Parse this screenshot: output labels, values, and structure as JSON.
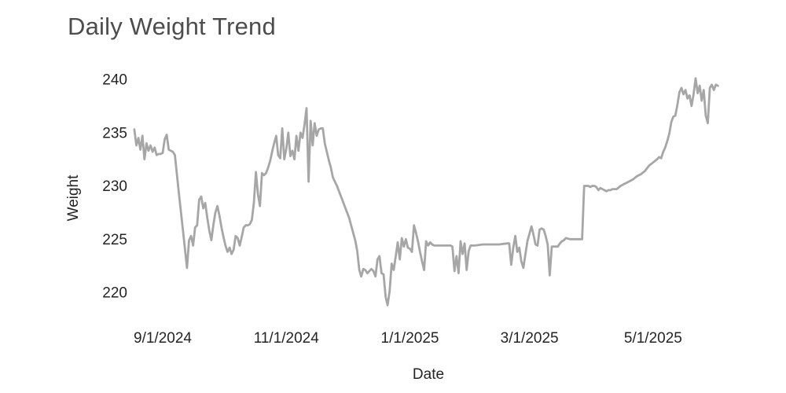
{
  "chart_data": {
    "type": "line",
    "title": "Daily Weight Trend",
    "xlabel": "Date",
    "ylabel": "Weight",
    "x_unit": "days since first observation",
    "grid": false,
    "legend": false,
    "xlim": [
      0,
      288
    ],
    "ylim": [
      217.5,
      241.5
    ],
    "y_ticks": [
      240,
      235,
      230,
      225,
      220
    ],
    "x_ticks": [
      {
        "x": 14,
        "label": "9/1/2024"
      },
      {
        "x": 75,
        "label": "11/1/2024"
      },
      {
        "x": 136,
        "label": "1/1/2025"
      },
      {
        "x": 195,
        "label": "3/1/2025"
      },
      {
        "x": 256,
        "label": "5/1/2025"
      }
    ],
    "colors": {
      "line": "#a6a6a6",
      "title_text": "#4d4d4d",
      "axis_text": "#242424"
    },
    "line_width": 2.8,
    "series": [
      {
        "name": "Weight",
        "points": [
          [
            0,
            235.3
          ],
          [
            1,
            233.8
          ],
          [
            2,
            234.5
          ],
          [
            3,
            233.4
          ],
          [
            4,
            234.7
          ],
          [
            5,
            232.5
          ],
          [
            6,
            234.0
          ],
          [
            7,
            233.3
          ],
          [
            8,
            233.8
          ],
          [
            9,
            233.2
          ],
          [
            10,
            233.6
          ],
          [
            11,
            232.9
          ],
          [
            12,
            233.0
          ],
          [
            13,
            233.0
          ],
          [
            14,
            233.1
          ],
          [
            15,
            234.4
          ],
          [
            16,
            234.8
          ],
          [
            17,
            233.4
          ],
          [
            18,
            233.3
          ],
          [
            19,
            233.2
          ],
          [
            20,
            232.9
          ],
          [
            22,
            229.3
          ],
          [
            24,
            225.8
          ],
          [
            26,
            222.3
          ],
          [
            27,
            224.9
          ],
          [
            28,
            225.3
          ],
          [
            29,
            224.4
          ],
          [
            30,
            226.1
          ],
          [
            31,
            226.3
          ],
          [
            32,
            228.7
          ],
          [
            33,
            229.0
          ],
          [
            34,
            227.9
          ],
          [
            35,
            228.4
          ],
          [
            36,
            227.0
          ],
          [
            37,
            225.8
          ],
          [
            38,
            224.9
          ],
          [
            39,
            226.3
          ],
          [
            40,
            227.5
          ],
          [
            41,
            228.1
          ],
          [
            42,
            227.2
          ],
          [
            43,
            226.1
          ],
          [
            44,
            225.2
          ],
          [
            45,
            224.4
          ],
          [
            46,
            223.8
          ],
          [
            47,
            224.2
          ],
          [
            48,
            223.6
          ],
          [
            49,
            224.0
          ],
          [
            50,
            225.3
          ],
          [
            51,
            225.1
          ],
          [
            52,
            224.4
          ],
          [
            53,
            225.2
          ],
          [
            54,
            226.1
          ],
          [
            55,
            226.3
          ],
          [
            56,
            226.3
          ],
          [
            57,
            226.4
          ],
          [
            58,
            226.8
          ],
          [
            59,
            228.4
          ],
          [
            60,
            231.3
          ],
          [
            61,
            229.2
          ],
          [
            62,
            228.1
          ],
          [
            63,
            231.2
          ],
          [
            64,
            231.0
          ],
          [
            65,
            231.2
          ],
          [
            66,
            231.7
          ],
          [
            67,
            232.3
          ],
          [
            68,
            233.2
          ],
          [
            69,
            234.0
          ],
          [
            70,
            234.7
          ],
          [
            71,
            232.9
          ],
          [
            72,
            232.6
          ],
          [
            73,
            235.4
          ],
          [
            74,
            232.5
          ],
          [
            75,
            233.5
          ],
          [
            76,
            235.0
          ],
          [
            77,
            232.8
          ],
          [
            78,
            233.3
          ],
          [
            79,
            232.5
          ],
          [
            80,
            234.7
          ],
          [
            81,
            233.3
          ],
          [
            82,
            235.0
          ],
          [
            83,
            234.5
          ],
          [
            84,
            235.8
          ],
          [
            85,
            237.3
          ],
          [
            86,
            230.4
          ],
          [
            87,
            236.1
          ],
          [
            88,
            233.8
          ],
          [
            89,
            235.9
          ],
          [
            90,
            234.7
          ],
          [
            91,
            235.3
          ],
          [
            92,
            235.4
          ],
          [
            93,
            235.4
          ],
          [
            94,
            234.0
          ],
          [
            95,
            233.2
          ],
          [
            96,
            232.4
          ],
          [
            97,
            231.7
          ],
          [
            98,
            230.8
          ],
          [
            100,
            230.0
          ],
          [
            102,
            229.0
          ],
          [
            104,
            228.0
          ],
          [
            106,
            227.0
          ],
          [
            107,
            226.3
          ],
          [
            108,
            225.6
          ],
          [
            109,
            224.9
          ],
          [
            110,
            223.9
          ],
          [
            111,
            222.1
          ],
          [
            112,
            221.5
          ],
          [
            113,
            222.2
          ],
          [
            114,
            222.1
          ],
          [
            115,
            221.8
          ],
          [
            116,
            222.0
          ],
          [
            117,
            222.2
          ],
          [
            118,
            222.0
          ],
          [
            119,
            221.5
          ],
          [
            120,
            223.1
          ],
          [
            121,
            223.4
          ],
          [
            122,
            221.8
          ],
          [
            123,
            221.7
          ],
          [
            124,
            219.6
          ],
          [
            125,
            218.8
          ],
          [
            126,
            220.1
          ],
          [
            127,
            222.7
          ],
          [
            128,
            222.1
          ],
          [
            129,
            223.4
          ],
          [
            130,
            224.7
          ],
          [
            131,
            223.1
          ],
          [
            132,
            225.1
          ],
          [
            133,
            224.3
          ],
          [
            134,
            225.0
          ],
          [
            135,
            224.2
          ],
          [
            136,
            224.1
          ],
          [
            137,
            223.8
          ],
          [
            138,
            226.3
          ],
          [
            139,
            225.6
          ],
          [
            140,
            224.8
          ],
          [
            141,
            223.8
          ],
          [
            142,
            222.9
          ],
          [
            143,
            222.1
          ],
          [
            144,
            224.8
          ],
          [
            145,
            224.4
          ],
          [
            146,
            224.7
          ],
          [
            147,
            224.5
          ],
          [
            148,
            224.4
          ],
          [
            150,
            224.4
          ],
          [
            152,
            224.4
          ],
          [
            154,
            224.4
          ],
          [
            156,
            224.4
          ],
          [
            157,
            224.3
          ],
          [
            158,
            222.0
          ],
          [
            159,
            223.4
          ],
          [
            160,
            221.8
          ],
          [
            161,
            224.8
          ],
          [
            162,
            223.6
          ],
          [
            163,
            224.6
          ],
          [
            164,
            222.1
          ],
          [
            165,
            223.9
          ],
          [
            166,
            224.4
          ],
          [
            168,
            224.4
          ],
          [
            172,
            224.5
          ],
          [
            176,
            224.5
          ],
          [
            180,
            224.5
          ],
          [
            184,
            224.6
          ],
          [
            185,
            224.6
          ],
          [
            186,
            222.6
          ],
          [
            187,
            224.2
          ],
          [
            188,
            225.3
          ],
          [
            189,
            223.8
          ],
          [
            190,
            224.2
          ],
          [
            191,
            222.9
          ],
          [
            192,
            222.3
          ],
          [
            193,
            223.6
          ],
          [
            194,
            224.8
          ],
          [
            195,
            225.5
          ],
          [
            196,
            226.2
          ],
          [
            197,
            225.4
          ],
          [
            198,
            224.5
          ],
          [
            199,
            224.4
          ],
          [
            200,
            225.9
          ],
          [
            201,
            226.0
          ],
          [
            202,
            225.9
          ],
          [
            203,
            225.3
          ],
          [
            204,
            224.5
          ],
          [
            205,
            221.6
          ],
          [
            206,
            224.3
          ],
          [
            207,
            224.3
          ],
          [
            208,
            224.3
          ],
          [
            209,
            224.3
          ],
          [
            210,
            224.6
          ],
          [
            211,
            224.8
          ],
          [
            212,
            224.9
          ],
          [
            213,
            225.1
          ],
          [
            215,
            225.0
          ],
          [
            217,
            225.0
          ],
          [
            219,
            225.0
          ],
          [
            221,
            225.0
          ],
          [
            222,
            230.0
          ],
          [
            223,
            230.0
          ],
          [
            224,
            230.0
          ],
          [
            225,
            229.9
          ],
          [
            226,
            230.0
          ],
          [
            227,
            230.0
          ],
          [
            228,
            229.9
          ],
          [
            229,
            229.6
          ],
          [
            230,
            229.8
          ],
          [
            231,
            229.7
          ],
          [
            232,
            229.6
          ],
          [
            233,
            229.5
          ],
          [
            234,
            229.6
          ],
          [
            235,
            229.6
          ],
          [
            236,
            229.7
          ],
          [
            238,
            229.7
          ],
          [
            240,
            230.0
          ],
          [
            242,
            230.2
          ],
          [
            244,
            230.4
          ],
          [
            246,
            230.6
          ],
          [
            248,
            230.9
          ],
          [
            250,
            231.1
          ],
          [
            252,
            231.4
          ],
          [
            254,
            231.9
          ],
          [
            256,
            232.2
          ],
          [
            258,
            232.5
          ],
          [
            259,
            232.7
          ],
          [
            260,
            232.6
          ],
          [
            261,
            233.2
          ],
          [
            262,
            233.6
          ],
          [
            263,
            234.2
          ],
          [
            264,
            234.9
          ],
          [
            265,
            236.0
          ],
          [
            266,
            236.5
          ],
          [
            267,
            236.6
          ],
          [
            268,
            237.6
          ],
          [
            269,
            238.8
          ],
          [
            270,
            239.2
          ],
          [
            271,
            238.6
          ],
          [
            272,
            239.0
          ],
          [
            273,
            238.2
          ],
          [
            274,
            238.5
          ],
          [
            275,
            237.5
          ],
          [
            276,
            238.6
          ],
          [
            277,
            240.1
          ],
          [
            278,
            238.7
          ],
          [
            279,
            239.4
          ],
          [
            280,
            238.0
          ],
          [
            281,
            239.0
          ],
          [
            282,
            236.6
          ],
          [
            283,
            235.9
          ],
          [
            284,
            239.2
          ],
          [
            285,
            239.5
          ],
          [
            286,
            239.0
          ],
          [
            287,
            239.5
          ],
          [
            288,
            239.4
          ]
        ]
      }
    ]
  }
}
